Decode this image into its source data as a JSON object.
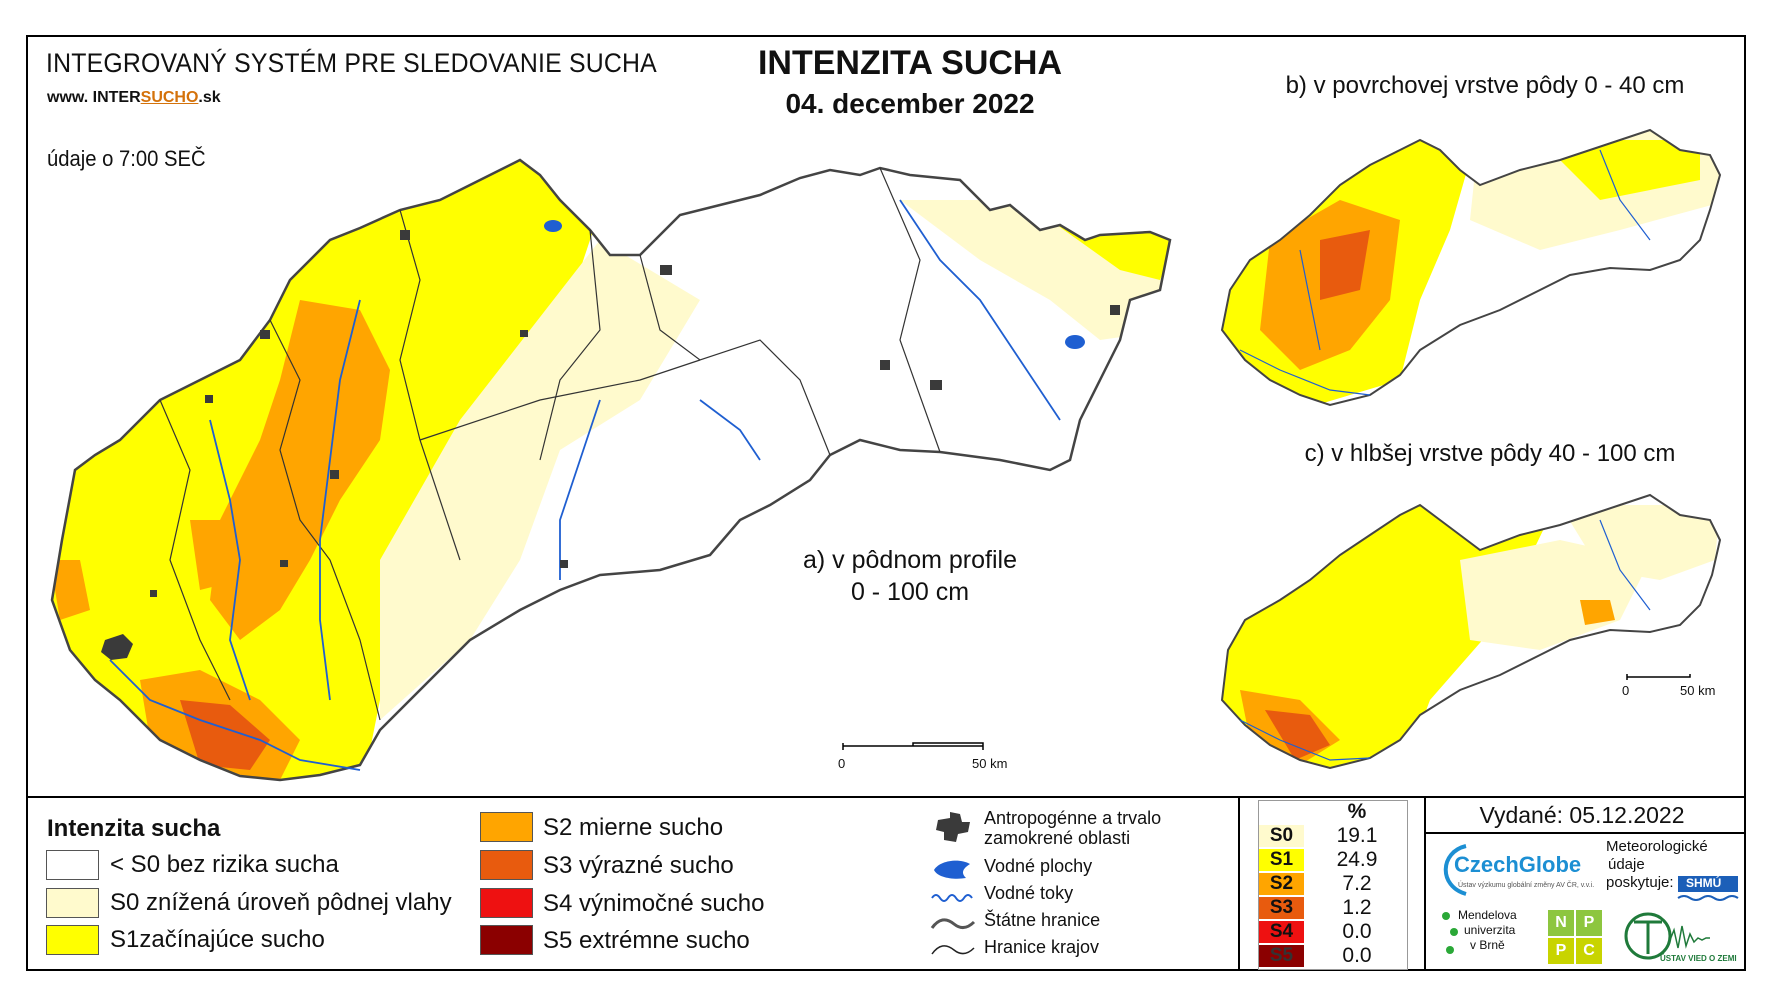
{
  "header": {
    "system_title": "INTEGROVANÝ SYSTÉM PRE SLEDOVANIE SUCHA",
    "website_prefix": "www. INTER",
    "website_accent": "SUCHO",
    "website_suffix": ".sk",
    "data_time": "údaje o 7:00 SEČ",
    "title": "INTENZITA SUCHA",
    "date": "04. december 2022"
  },
  "maps": {
    "main_caption_line1": "a) v pôdnom profile",
    "main_caption_line2": "0 - 100 cm",
    "b_caption": "b) v povrchovej vrstve pôdy 0 - 40 cm",
    "c_caption": "c) v hlbšej vrstve pôdy 40 - 100 cm",
    "scale_zero": "0",
    "scale_end": "50 km"
  },
  "legend": {
    "title": "Intenzita sucha",
    "classes": [
      {
        "label": "< S0 bez rizika sucha",
        "color": "#ffffff"
      },
      {
        "label": "S0 znížená úroveň pôdnej vlahy",
        "color": "#fffacd"
      },
      {
        "label": "S1začínajúce sucho",
        "color": "#ffff00"
      },
      {
        "label": "S2 mierne sucho",
        "color": "#ffa500"
      },
      {
        "label": "S3 výrazné sucho",
        "color": "#e85b0e"
      },
      {
        "label": "S4 výnimočné sucho",
        "color": "#ee1111"
      },
      {
        "label": "S5 extrémne sucho",
        "color": "#8b0000"
      }
    ]
  },
  "symbols": {
    "urban": "Antropogénne a trvalo zamokrené oblasti",
    "water_bodies": "Vodné plochy",
    "rivers": "Vodné toky",
    "state_border": "Štátne hranice",
    "regions": "Hranice krajov"
  },
  "percent_table": {
    "header": "%",
    "rows": [
      {
        "code": "S0",
        "value": "19.1",
        "color": "#fffacd"
      },
      {
        "code": "S1",
        "value": "24.9",
        "color": "#ffff00"
      },
      {
        "code": "S2",
        "value": "7.2",
        "color": "#ffa500"
      },
      {
        "code": "S3",
        "value": "1.2",
        "color": "#e85b0e"
      },
      {
        "code": "S4",
        "value": "0.0",
        "color": "#ee1111"
      },
      {
        "code": "S5",
        "value": "0.0",
        "color": "#8b0000"
      }
    ]
  },
  "footer": {
    "issued": "Vydané: 05.12.2022",
    "czechglobe": "CzechGlobe",
    "czechglobe_sub": "Ústav výzkumu globální změny AV ČR, v.v.i.",
    "meteo_line1": "Meteorologické",
    "meteo_line2": "údaje",
    "meteo_line3": "poskytuje:",
    "shmu": "SHMÚ",
    "mendel_line1": "Mendelova",
    "mendel_line2": "univerzita",
    "mendel_line3": "v Brně",
    "nppc": [
      "N",
      "P",
      "P",
      "C"
    ],
    "uvz": "ÚSTAV VIED O ZEMI"
  }
}
